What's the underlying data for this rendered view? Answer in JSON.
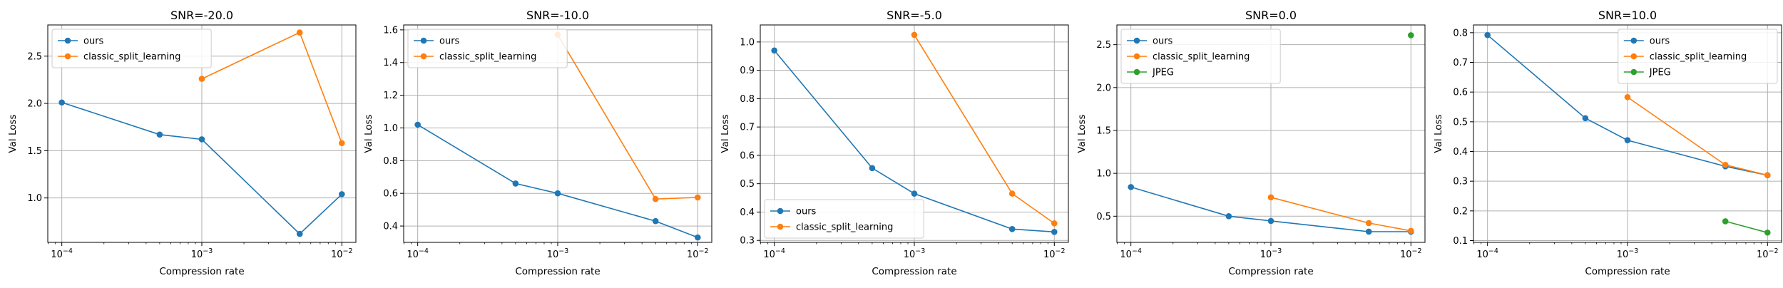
{
  "figure": {
    "colors": {
      "ours": "#1f77b4",
      "classic_split_learning": "#ff7f0e",
      "JPEG": "#2ca02c"
    }
  },
  "chart_data": [
    {
      "type": "line",
      "title": "SNR=-20.0",
      "xlabel": "Compression rate",
      "ylabel": "Val Loss",
      "xscale": "log",
      "xlim": [
        7.94e-05,
        0.0126
      ],
      "ylim": [
        0.53,
        2.83
      ],
      "x_ticks": [
        {
          "value": 0.0001,
          "exp": "-4"
        },
        {
          "value": 0.001,
          "exp": "-3"
        },
        {
          "value": 0.01,
          "exp": "-2"
        }
      ],
      "y_ticks": [
        {
          "value": 1.0,
          "label": "1.0"
        },
        {
          "value": 1.5,
          "label": "1.5"
        },
        {
          "value": 2.0,
          "label": "2.0"
        },
        {
          "value": 2.5,
          "label": "2.5"
        }
      ],
      "grid": true,
      "legend": {
        "position": "upper-left"
      },
      "series": [
        {
          "name": "ours",
          "color": "#1f77b4",
          "x": [
            0.0001,
            0.0005,
            0.001,
            0.005,
            0.01
          ],
          "y": [
            2.01,
            1.67,
            1.62,
            0.62,
            1.04
          ]
        },
        {
          "name": "classic_split_learning",
          "color": "#ff7f0e",
          "x": [
            0.001,
            0.005,
            0.01
          ],
          "y": [
            2.26,
            2.75,
            1.58
          ]
        }
      ]
    },
    {
      "type": "line",
      "title": "SNR=-10.0",
      "xlabel": "Compression rate",
      "ylabel": "Val Loss",
      "xscale": "log",
      "xlim": [
        7.94e-05,
        0.0126
      ],
      "ylim": [
        0.3,
        1.63
      ],
      "x_ticks": [
        {
          "value": 0.0001,
          "exp": "-4"
        },
        {
          "value": 0.001,
          "exp": "-3"
        },
        {
          "value": 0.01,
          "exp": "-2"
        }
      ],
      "y_ticks": [
        {
          "value": 0.4,
          "label": "0.4"
        },
        {
          "value": 0.6,
          "label": "0.6"
        },
        {
          "value": 0.8,
          "label": "0.8"
        },
        {
          "value": 1.0,
          "label": "1.0"
        },
        {
          "value": 1.2,
          "label": "1.2"
        },
        {
          "value": 1.4,
          "label": "1.4"
        },
        {
          "value": 1.6,
          "label": "1.6"
        }
      ],
      "grid": true,
      "legend": {
        "position": "upper-left"
      },
      "series": [
        {
          "name": "ours",
          "color": "#1f77b4",
          "x": [
            0.0001,
            0.0005,
            0.001,
            0.005,
            0.01
          ],
          "y": [
            1.02,
            0.66,
            0.6,
            0.43,
            0.33
          ]
        },
        {
          "name": "classic_split_learning",
          "color": "#ff7f0e",
          "x": [
            0.001,
            0.005,
            0.01
          ],
          "y": [
            1.57,
            0.565,
            0.575
          ]
        }
      ]
    },
    {
      "type": "line",
      "title": "SNR=-5.0",
      "xlabel": "Compression rate",
      "ylabel": "Val Loss",
      "xscale": "log",
      "xlim": [
        7.94e-05,
        0.0126
      ],
      "ylim": [
        0.293,
        1.06
      ],
      "x_ticks": [
        {
          "value": 0.0001,
          "exp": "-4"
        },
        {
          "value": 0.001,
          "exp": "-3"
        },
        {
          "value": 0.01,
          "exp": "-2"
        }
      ],
      "y_ticks": [
        {
          "value": 0.3,
          "label": "0.3"
        },
        {
          "value": 0.4,
          "label": "0.4"
        },
        {
          "value": 0.5,
          "label": "0.5"
        },
        {
          "value": 0.6,
          "label": "0.6"
        },
        {
          "value": 0.7,
          "label": "0.7"
        },
        {
          "value": 0.8,
          "label": "0.8"
        },
        {
          "value": 0.9,
          "label": "0.9"
        },
        {
          "value": 1.0,
          "label": "1.0"
        }
      ],
      "grid": true,
      "legend": {
        "position": "lower-left"
      },
      "series": [
        {
          "name": "ours",
          "color": "#1f77b4",
          "x": [
            0.0001,
            0.0005,
            0.001,
            0.005,
            0.01
          ],
          "y": [
            0.97,
            0.555,
            0.465,
            0.34,
            0.33
          ]
        },
        {
          "name": "classic_split_learning",
          "color": "#ff7f0e",
          "x": [
            0.001,
            0.005,
            0.01
          ],
          "y": [
            1.025,
            0.465,
            0.36
          ]
        }
      ]
    },
    {
      "type": "line",
      "title": "SNR=0.0",
      "xlabel": "Compression rate",
      "ylabel": "Val Loss",
      "xscale": "log",
      "xlim": [
        7.94e-05,
        0.0126
      ],
      "ylim": [
        0.195,
        2.73
      ],
      "x_ticks": [
        {
          "value": 0.0001,
          "exp": "-4"
        },
        {
          "value": 0.001,
          "exp": "-3"
        },
        {
          "value": 0.01,
          "exp": "-2"
        }
      ],
      "y_ticks": [
        {
          "value": 0.5,
          "label": "0.5"
        },
        {
          "value": 1.0,
          "label": "1.0"
        },
        {
          "value": 1.5,
          "label": "1.5"
        },
        {
          "value": 2.0,
          "label": "2.0"
        },
        {
          "value": 2.5,
          "label": "2.5"
        }
      ],
      "grid": true,
      "legend": {
        "position": "upper-left"
      },
      "series": [
        {
          "name": "ours",
          "color": "#1f77b4",
          "x": [
            0.0001,
            0.0005,
            0.001,
            0.005,
            0.01
          ],
          "y": [
            0.84,
            0.5,
            0.445,
            0.32,
            0.32
          ]
        },
        {
          "name": "classic_split_learning",
          "color": "#ff7f0e",
          "x": [
            0.001,
            0.005,
            0.01
          ],
          "y": [
            0.72,
            0.42,
            0.33
          ]
        },
        {
          "name": "JPEG",
          "color": "#2ca02c",
          "x": [
            0.01
          ],
          "y": [
            2.61
          ]
        }
      ]
    },
    {
      "type": "line",
      "title": "SNR=10.0",
      "xlabel": "Compression rate",
      "ylabel": "Val Loss",
      "xscale": "log",
      "xlim": [
        7.94e-05,
        0.0126
      ],
      "ylim": [
        0.094,
        0.826
      ],
      "x_ticks": [
        {
          "value": 0.0001,
          "exp": "-4"
        },
        {
          "value": 0.001,
          "exp": "-3"
        },
        {
          "value": 0.01,
          "exp": "-2"
        }
      ],
      "y_ticks": [
        {
          "value": 0.1,
          "label": "0.1"
        },
        {
          "value": 0.2,
          "label": "0.2"
        },
        {
          "value": 0.3,
          "label": "0.3"
        },
        {
          "value": 0.4,
          "label": "0.4"
        },
        {
          "value": 0.5,
          "label": "0.5"
        },
        {
          "value": 0.6,
          "label": "0.6"
        },
        {
          "value": 0.7,
          "label": "0.7"
        },
        {
          "value": 0.8,
          "label": "0.8"
        }
      ],
      "grid": true,
      "legend": {
        "position": "upper-right"
      },
      "series": [
        {
          "name": "ours",
          "color": "#1f77b4",
          "x": [
            0.0001,
            0.0005,
            0.001,
            0.005,
            0.01
          ],
          "y": [
            0.792,
            0.512,
            0.438,
            0.35,
            0.32
          ]
        },
        {
          "name": "classic_split_learning",
          "color": "#ff7f0e",
          "x": [
            0.001,
            0.005,
            0.01
          ],
          "y": [
            0.583,
            0.355,
            0.32
          ]
        },
        {
          "name": "JPEG",
          "color": "#2ca02c",
          "x": [
            0.005,
            0.01
          ],
          "y": [
            0.165,
            0.127
          ]
        }
      ]
    }
  ]
}
